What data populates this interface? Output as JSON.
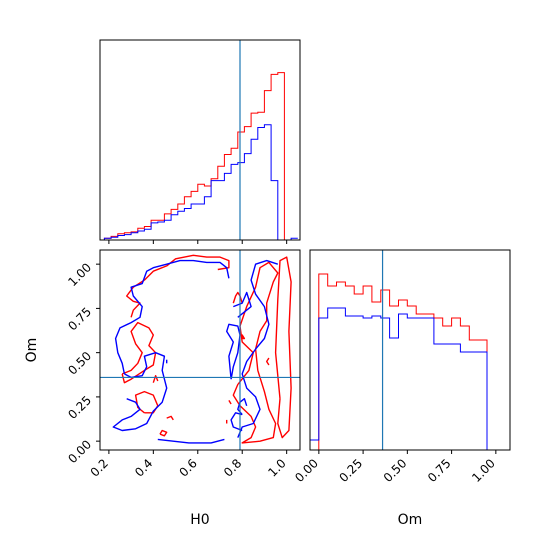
{
  "chart_data": [
    {
      "type": "histogram",
      "panel": "marginal H0",
      "x_range": [
        0.16,
        1.06
      ],
      "truth_x": 0.79,
      "x_bins": [
        0.18,
        0.21,
        0.24,
        0.27,
        0.3,
        0.33,
        0.36,
        0.39,
        0.42,
        0.45,
        0.48,
        0.51,
        0.54,
        0.57,
        0.6,
        0.63,
        0.66,
        0.69,
        0.72,
        0.75,
        0.78,
        0.81,
        0.84,
        0.87,
        0.9,
        0.93,
        0.96,
        0.99,
        1.02,
        1.05
      ],
      "y_max": 1.0,
      "series": [
        {
          "color": "#ff0000",
          "values": [
            0.01,
            0.02,
            0.035,
            0.04,
            0.045,
            0.065,
            0.075,
            0.11,
            0.11,
            0.145,
            0.17,
            0.2,
            0.24,
            0.27,
            0.31,
            0.3,
            0.34,
            0.41,
            0.475,
            0.51,
            0.6,
            0.63,
            0.705,
            0.71,
            0.83,
            0.92,
            0.93,
            0.0,
            0.0
          ]
        },
        {
          "color": "#0000ff",
          "values": [
            0.01,
            0.015,
            0.025,
            0.03,
            0.04,
            0.05,
            0.06,
            0.095,
            0.1,
            0.11,
            0.14,
            0.16,
            0.175,
            0.2,
            0.2,
            0.24,
            0.33,
            0.33,
            0.37,
            0.42,
            0.43,
            0.48,
            0.56,
            0.625,
            0.64,
            0.33,
            0.0,
            0.0,
            0.01
          ]
        }
      ]
    },
    {
      "type": "contour",
      "panel": "joint H0 vs Om",
      "xlabel": "H0",
      "ylabel": "Om",
      "xlim": [
        0.16,
        1.06
      ],
      "ylim": [
        -0.05,
        1.08
      ],
      "x_ticks": [
        "0.2",
        "0.4",
        "0.6",
        "0.8",
        "1.0"
      ],
      "y_ticks": [
        "0.00",
        "0.25",
        "0.50",
        "0.75",
        "1.00"
      ],
      "truth": {
        "x": 0.79,
        "y": 0.36
      },
      "contours": [
        {
          "color": "#ff0000",
          "lines": [
            [
              [
                0.26,
                0.38
              ],
              [
                0.3,
                0.4
              ],
              [
                0.33,
                0.44
              ],
              [
                0.35,
                0.5
              ],
              [
                0.32,
                0.55
              ],
              [
                0.3,
                0.62
              ],
              [
                0.33,
                0.67
              ],
              [
                0.38,
                0.64
              ],
              [
                0.4,
                0.6
              ],
              [
                0.38,
                0.54
              ],
              [
                0.41,
                0.5
              ],
              [
                0.4,
                0.43
              ],
              [
                0.36,
                0.4
              ],
              [
                0.3,
                0.35
              ],
              [
                0.27,
                0.33
              ],
              [
                0.26,
                0.38
              ]
            ],
            [
              [
                0.36,
                0.91
              ],
              [
                0.4,
                0.96
              ],
              [
                0.46,
                0.99
              ],
              [
                0.5,
                1.03
              ],
              [
                0.58,
                1.05
              ],
              [
                0.64,
                1.04
              ],
              [
                0.7,
                1.04
              ],
              [
                0.74,
                1.02
              ],
              [
                0.74,
                0.98
              ],
              [
                0.69,
                0.97
              ]
            ],
            [
              [
                0.36,
                0.91
              ],
              [
                0.31,
                0.87
              ],
              [
                0.28,
                0.82
              ],
              [
                0.31,
                0.79
              ],
              [
                0.34,
                0.78
              ],
              [
                0.31,
                0.74
              ],
              [
                0.3,
                0.7
              ]
            ],
            [
              [
                0.36,
                0.16
              ],
              [
                0.33,
                0.19
              ],
              [
                0.32,
                0.26
              ],
              [
                0.36,
                0.28
              ],
              [
                0.4,
                0.26
              ],
              [
                0.42,
                0.2
              ],
              [
                0.4,
                0.16
              ],
              [
                0.36,
                0.16
              ]
            ],
            [
              [
                0.46,
                0.13
              ],
              [
                0.48,
                0.14
              ],
              [
                0.49,
                0.12
              ]
            ],
            [
              [
                0.43,
                0.04
              ],
              [
                0.44,
                0.06
              ],
              [
                0.46,
                0.05
              ],
              [
                0.45,
                0.03
              ],
              [
                0.43,
                0.04
              ]
            ],
            [
              [
                0.4,
                0.33
              ],
              [
                0.41,
                0.37
              ],
              [
                0.42,
                0.34
              ]
            ],
            [
              [
                0.8,
                0.58
              ],
              [
                0.8,
                0.6
              ],
              [
                0.81,
                0.58
              ],
              [
                0.8,
                0.58
              ]
            ],
            [
              [
                0.97,
                0.24
              ],
              [
                0.95,
                0.5
              ],
              [
                0.96,
                0.8
              ],
              [
                0.97,
                1.02
              ],
              [
                1.0,
                1.04
              ],
              [
                1.02,
                0.9
              ],
              [
                1.01,
                0.62
              ],
              [
                1.02,
                0.3
              ],
              [
                1.01,
                0.06
              ],
              [
                0.98,
                0.02
              ],
              [
                0.96,
                0.1
              ],
              [
                0.97,
                0.24
              ]
            ],
            [
              [
                0.87,
                0.4
              ],
              [
                0.86,
                0.52
              ],
              [
                0.88,
                0.62
              ],
              [
                0.91,
                0.68
              ],
              [
                0.91,
                0.78
              ],
              [
                0.94,
                0.9
              ],
              [
                0.96,
                0.95
              ],
              [
                0.92,
                1.01
              ],
              [
                0.88,
                0.98
              ],
              [
                0.86,
                0.87
              ],
              [
                0.82,
                0.76
              ],
              [
                0.79,
                0.65
              ],
              [
                0.8,
                0.56
              ],
              [
                0.85,
                0.5
              ],
              [
                0.83,
                0.4
              ],
              [
                0.78,
                0.32
              ],
              [
                0.76,
                0.26
              ],
              [
                0.79,
                0.2
              ],
              [
                0.84,
                0.14
              ],
              [
                0.86,
                0.08
              ],
              [
                0.84,
                0.02
              ],
              [
                0.8,
                -0.01
              ],
              [
                0.88,
                0.0
              ],
              [
                0.94,
                0.02
              ],
              [
                0.95,
                0.1
              ],
              [
                0.92,
                0.18
              ],
              [
                0.9,
                0.28
              ],
              [
                0.87,
                0.4
              ]
            ],
            [
              [
                0.92,
                0.43
              ],
              [
                0.91,
                0.45
              ],
              [
                0.92,
                0.47
              ]
            ],
            [
              [
                0.73,
                0.1
              ],
              [
                0.73,
                0.12
              ]
            ],
            [
              [
                0.75,
                0.21
              ],
              [
                0.74,
                0.23
              ]
            ],
            [
              [
                0.76,
                0.78
              ],
              [
                0.77,
                0.82
              ],
              [
                0.78,
                0.84
              ],
              [
                0.79,
                0.82
              ],
              [
                0.8,
                0.78
              ]
            ]
          ]
        },
        {
          "color": "#0000ff",
          "lines": [
            [
              [
                0.27,
                0.38
              ],
              [
                0.3,
                0.36
              ],
              [
                0.35,
                0.37
              ],
              [
                0.37,
                0.42
              ],
              [
                0.36,
                0.48
              ],
              [
                0.41,
                0.5
              ],
              [
                0.45,
                0.48
              ],
              [
                0.44,
                0.4
              ],
              [
                0.46,
                0.3
              ],
              [
                0.44,
                0.22
              ],
              [
                0.4,
                0.17
              ],
              [
                0.37,
                0.1
              ],
              [
                0.32,
                0.07
              ],
              [
                0.26,
                0.06
              ],
              [
                0.22,
                0.08
              ],
              [
                0.26,
                0.12
              ],
              [
                0.3,
                0.14
              ],
              [
                0.34,
                0.18
              ],
              [
                0.32,
                0.22
              ],
              [
                0.28,
                0.24
              ]
            ],
            [
              [
                0.27,
                0.38
              ],
              [
                0.26,
                0.44
              ],
              [
                0.24,
                0.5
              ],
              [
                0.23,
                0.58
              ],
              [
                0.25,
                0.64
              ],
              [
                0.3,
                0.67
              ],
              [
                0.34,
                0.7
              ],
              [
                0.35,
                0.76
              ],
              [
                0.31,
                0.82
              ],
              [
                0.3,
                0.87
              ],
              [
                0.35,
                0.89
              ],
              [
                0.37,
                0.96
              ],
              [
                0.4,
                0.98
              ],
              [
                0.46,
                1.0
              ],
              [
                0.52,
                1.02
              ],
              [
                0.58,
                1.02
              ],
              [
                0.64,
                1.01
              ],
              [
                0.7,
                1.01
              ],
              [
                0.73,
                0.98
              ],
              [
                0.74,
                0.92
              ]
            ],
            [
              [
                0.46,
                0.44
              ],
              [
                0.46,
                0.46
              ]
            ],
            [
              [
                0.42,
                0.01
              ],
              [
                0.49,
                0.0
              ],
              [
                0.56,
                -0.01
              ],
              [
                0.66,
                -0.01
              ],
              [
                0.72,
                0.01
              ]
            ],
            [
              [
                0.96,
                1.0
              ],
              [
                0.91,
                1.02
              ],
              [
                0.86,
                1.0
              ],
              [
                0.84,
                0.91
              ],
              [
                0.86,
                0.83
              ],
              [
                0.9,
                0.76
              ],
              [
                0.92,
                0.66
              ],
              [
                0.9,
                0.58
              ],
              [
                0.86,
                0.52
              ],
              [
                0.82,
                0.45
              ],
              [
                0.8,
                0.38
              ],
              [
                0.82,
                0.3
              ],
              [
                0.86,
                0.25
              ],
              [
                0.88,
                0.18
              ],
              [
                0.85,
                0.1
              ],
              [
                0.8,
                0.08
              ],
              [
                0.78,
                0.02
              ]
            ],
            [
              [
                0.75,
                0.35
              ],
              [
                0.76,
                0.42
              ],
              [
                0.78,
                0.5
              ],
              [
                0.79,
                0.6
              ],
              [
                0.78,
                0.65
              ],
              [
                0.74,
                0.66
              ],
              [
                0.73,
                0.62
              ],
              [
                0.76,
                0.56
              ],
              [
                0.74,
                0.48
              ],
              [
                0.75,
                0.35
              ]
            ],
            [
              [
                0.8,
                0.15
              ],
              [
                0.78,
                0.18
              ],
              [
                0.79,
                0.22
              ],
              [
                0.81,
                0.24
              ],
              [
                0.82,
                0.2
              ]
            ],
            [
              [
                0.76,
                0.76
              ],
              [
                0.8,
                0.78
              ],
              [
                0.82,
                0.84
              ],
              [
                0.84,
                0.76
              ],
              [
                0.78,
                0.7
              ]
            ],
            [
              [
                0.8,
                0.06
              ],
              [
                0.76,
                0.08
              ],
              [
                0.75,
                0.12
              ],
              [
                0.77,
                0.16
              ],
              [
                0.8,
                0.15
              ]
            ]
          ]
        }
      ]
    },
    {
      "type": "histogram",
      "panel": "marginal Om",
      "xlabel": "Om",
      "x_range": [
        -0.05,
        1.08
      ],
      "truth_x": 0.36,
      "x_ticks": [
        "0.00",
        "0.25",
        "0.50",
        "0.75",
        "1.00"
      ],
      "x_bins": [
        -0.05,
        0.0,
        0.05,
        0.1,
        0.15,
        0.2,
        0.25,
        0.3,
        0.35,
        0.4,
        0.45,
        0.5,
        0.55,
        0.6,
        0.65,
        0.7,
        0.75,
        0.8,
        0.85,
        0.9,
        0.95,
        1.0,
        1.05
      ],
      "y_max": 1.0,
      "series": [
        {
          "color": "#ff0000",
          "values": [
            0.0,
            0.88,
            0.82,
            0.84,
            0.82,
            0.78,
            0.82,
            0.74,
            0.8,
            0.72,
            0.75,
            0.72,
            0.68,
            0.68,
            0.66,
            0.62,
            0.66,
            0.62,
            0.55,
            0.55,
            0.0,
            0.0
          ]
        },
        {
          "color": "#0000ff",
          "values": [
            0.05,
            0.66,
            0.71,
            0.71,
            0.67,
            0.67,
            0.66,
            0.67,
            0.66,
            0.56,
            0.68,
            0.66,
            0.66,
            0.66,
            0.53,
            0.53,
            0.53,
            0.49,
            0.49,
            0.49,
            0.0,
            0.0
          ]
        }
      ]
    }
  ]
}
